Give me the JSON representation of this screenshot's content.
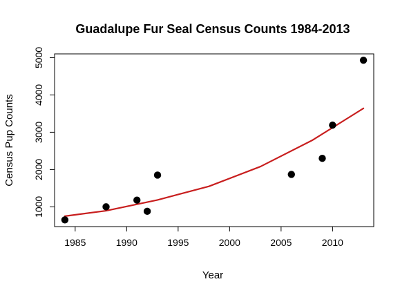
{
  "chart_data": {
    "type": "scatter",
    "title": "Guadalupe Fur Seal Census Counts 1984-2013",
    "xlabel": "Year",
    "ylabel": "Census Pup Counts",
    "xlim": [
      1983,
      2014
    ],
    "ylim": [
      470,
      5100
    ],
    "xticks": [
      1985,
      1990,
      1995,
      2000,
      2005,
      2010
    ],
    "yticks": [
      1000,
      2000,
      3000,
      4000,
      5000
    ],
    "grid": false,
    "legend": "none",
    "series": [
      {
        "type": "scatter",
        "color": "#000000",
        "points": [
          {
            "x": 1984,
            "y": 650
          },
          {
            "x": 1988,
            "y": 1000
          },
          {
            "x": 1991,
            "y": 1180
          },
          {
            "x": 1992,
            "y": 880
          },
          {
            "x": 1993,
            "y": 1850
          },
          {
            "x": 2006,
            "y": 1870
          },
          {
            "x": 2009,
            "y": 2300
          },
          {
            "x": 2010,
            "y": 3190
          },
          {
            "x": 2013,
            "y": 4930
          }
        ]
      },
      {
        "type": "line",
        "color": "#c81e1e",
        "points": [
          {
            "x": 1984,
            "y": 750
          },
          {
            "x": 1988,
            "y": 895
          },
          {
            "x": 1993,
            "y": 1185
          },
          {
            "x": 1998,
            "y": 1550
          },
          {
            "x": 2003,
            "y": 2080
          },
          {
            "x": 2008,
            "y": 2780
          },
          {
            "x": 2013,
            "y": 3640
          }
        ]
      }
    ]
  }
}
